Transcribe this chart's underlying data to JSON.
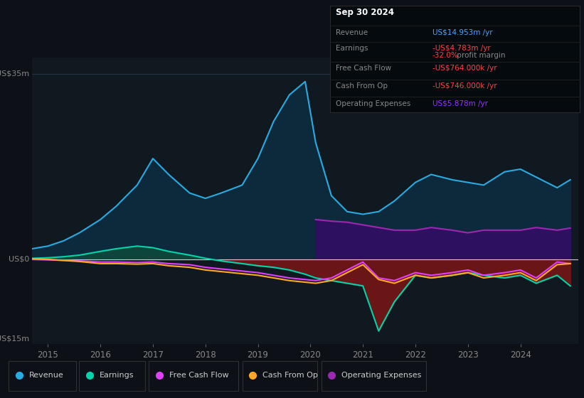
{
  "background_color": "#0d1117",
  "plot_bg_color": "#111920",
  "title": "Sep 30 2024",
  "y_label_top": "US$35m",
  "y_label_mid": "US$0",
  "y_label_bot": "-US$15m",
  "x_ticks": [
    2015,
    2016,
    2017,
    2018,
    2019,
    2020,
    2021,
    2022,
    2023,
    2024
  ],
  "revenue_color": "#29abe2",
  "earnings_color": "#00d4aa",
  "fcf_color": "#e040fb",
  "cashop_color": "#ffa726",
  "opex_color": "#9c27b0",
  "revenue_fill": "#0d2a3d",
  "opex_fill": "#2d1060",
  "earnings_positive_fill": "#0d4a3a",
  "earnings_negative_fill": "#7a1515",
  "info_box": {
    "date": "Sep 30 2024",
    "revenue_val": "US$14.953m",
    "revenue_color": "#4da6ff",
    "earnings_val": "-US$4.783m",
    "earnings_color": "#ff4444",
    "margin_val": "-32.0%",
    "margin_color": "#ff4444",
    "fcf_val": "-US$764.000k",
    "fcf_color": "#ff4444",
    "cashop_val": "-US$746.000k",
    "cashop_color": "#ff4444",
    "opex_val": "US$5.878m",
    "opex_color": "#9b30ff"
  },
  "years": [
    2014.7,
    2015.0,
    2015.3,
    2015.6,
    2016.0,
    2016.3,
    2016.7,
    2017.0,
    2017.3,
    2017.7,
    2018.0,
    2018.3,
    2018.7,
    2019.0,
    2019.3,
    2019.6,
    2019.9,
    2020.1,
    2020.4,
    2020.7,
    2021.0,
    2021.3,
    2021.6,
    2022.0,
    2022.3,
    2022.7,
    2023.0,
    2023.3,
    2023.7,
    2024.0,
    2024.3,
    2024.7,
    2024.95
  ],
  "revenue": [
    2.0,
    2.5,
    3.5,
    5.0,
    7.5,
    10.0,
    14.0,
    19.0,
    16.0,
    12.5,
    11.5,
    12.5,
    14.0,
    19.0,
    26.0,
    31.0,
    33.5,
    22.0,
    12.0,
    9.0,
    8.5,
    9.0,
    11.0,
    14.5,
    16.0,
    15.0,
    14.5,
    14.0,
    16.5,
    17.0,
    15.5,
    13.5,
    15.0
  ],
  "earnings": [
    0.2,
    0.3,
    0.5,
    0.8,
    1.5,
    2.0,
    2.5,
    2.2,
    1.5,
    0.8,
    0.2,
    -0.3,
    -0.8,
    -1.2,
    -1.5,
    -2.0,
    -2.8,
    -3.5,
    -4.0,
    -4.5,
    -5.0,
    -13.5,
    -8.0,
    -3.0,
    -3.5,
    -3.0,
    -2.5,
    -3.0,
    -3.5,
    -3.0,
    -4.5,
    -3.0,
    -5.0
  ],
  "fcf": [
    0.0,
    -0.1,
    -0.2,
    -0.3,
    -0.5,
    -0.5,
    -0.6,
    -0.5,
    -0.8,
    -1.0,
    -1.5,
    -1.8,
    -2.2,
    -2.5,
    -3.0,
    -3.5,
    -3.8,
    -4.0,
    -3.5,
    -2.0,
    -0.5,
    -3.5,
    -4.0,
    -2.5,
    -3.0,
    -2.5,
    -2.0,
    -3.0,
    -2.5,
    -2.0,
    -3.5,
    -0.5,
    -0.8
  ],
  "cashop": [
    0.1,
    0.0,
    -0.2,
    -0.4,
    -0.8,
    -0.8,
    -0.9,
    -0.8,
    -1.2,
    -1.5,
    -2.0,
    -2.3,
    -2.7,
    -3.0,
    -3.5,
    -4.0,
    -4.3,
    -4.5,
    -4.0,
    -2.5,
    -1.0,
    -3.8,
    -4.5,
    -3.0,
    -3.5,
    -3.0,
    -2.5,
    -3.5,
    -3.0,
    -2.5,
    -4.0,
    -1.0,
    -0.8
  ],
  "opex": [
    0.0,
    0.0,
    0.0,
    0.0,
    0.0,
    0.0,
    0.0,
    0.0,
    0.0,
    0.0,
    0.0,
    0.0,
    0.0,
    0.0,
    0.0,
    0.0,
    0.0,
    7.5,
    7.2,
    7.0,
    6.5,
    6.0,
    5.5,
    5.5,
    6.0,
    5.5,
    5.0,
    5.5,
    5.5,
    5.5,
    6.0,
    5.5,
    5.9
  ]
}
